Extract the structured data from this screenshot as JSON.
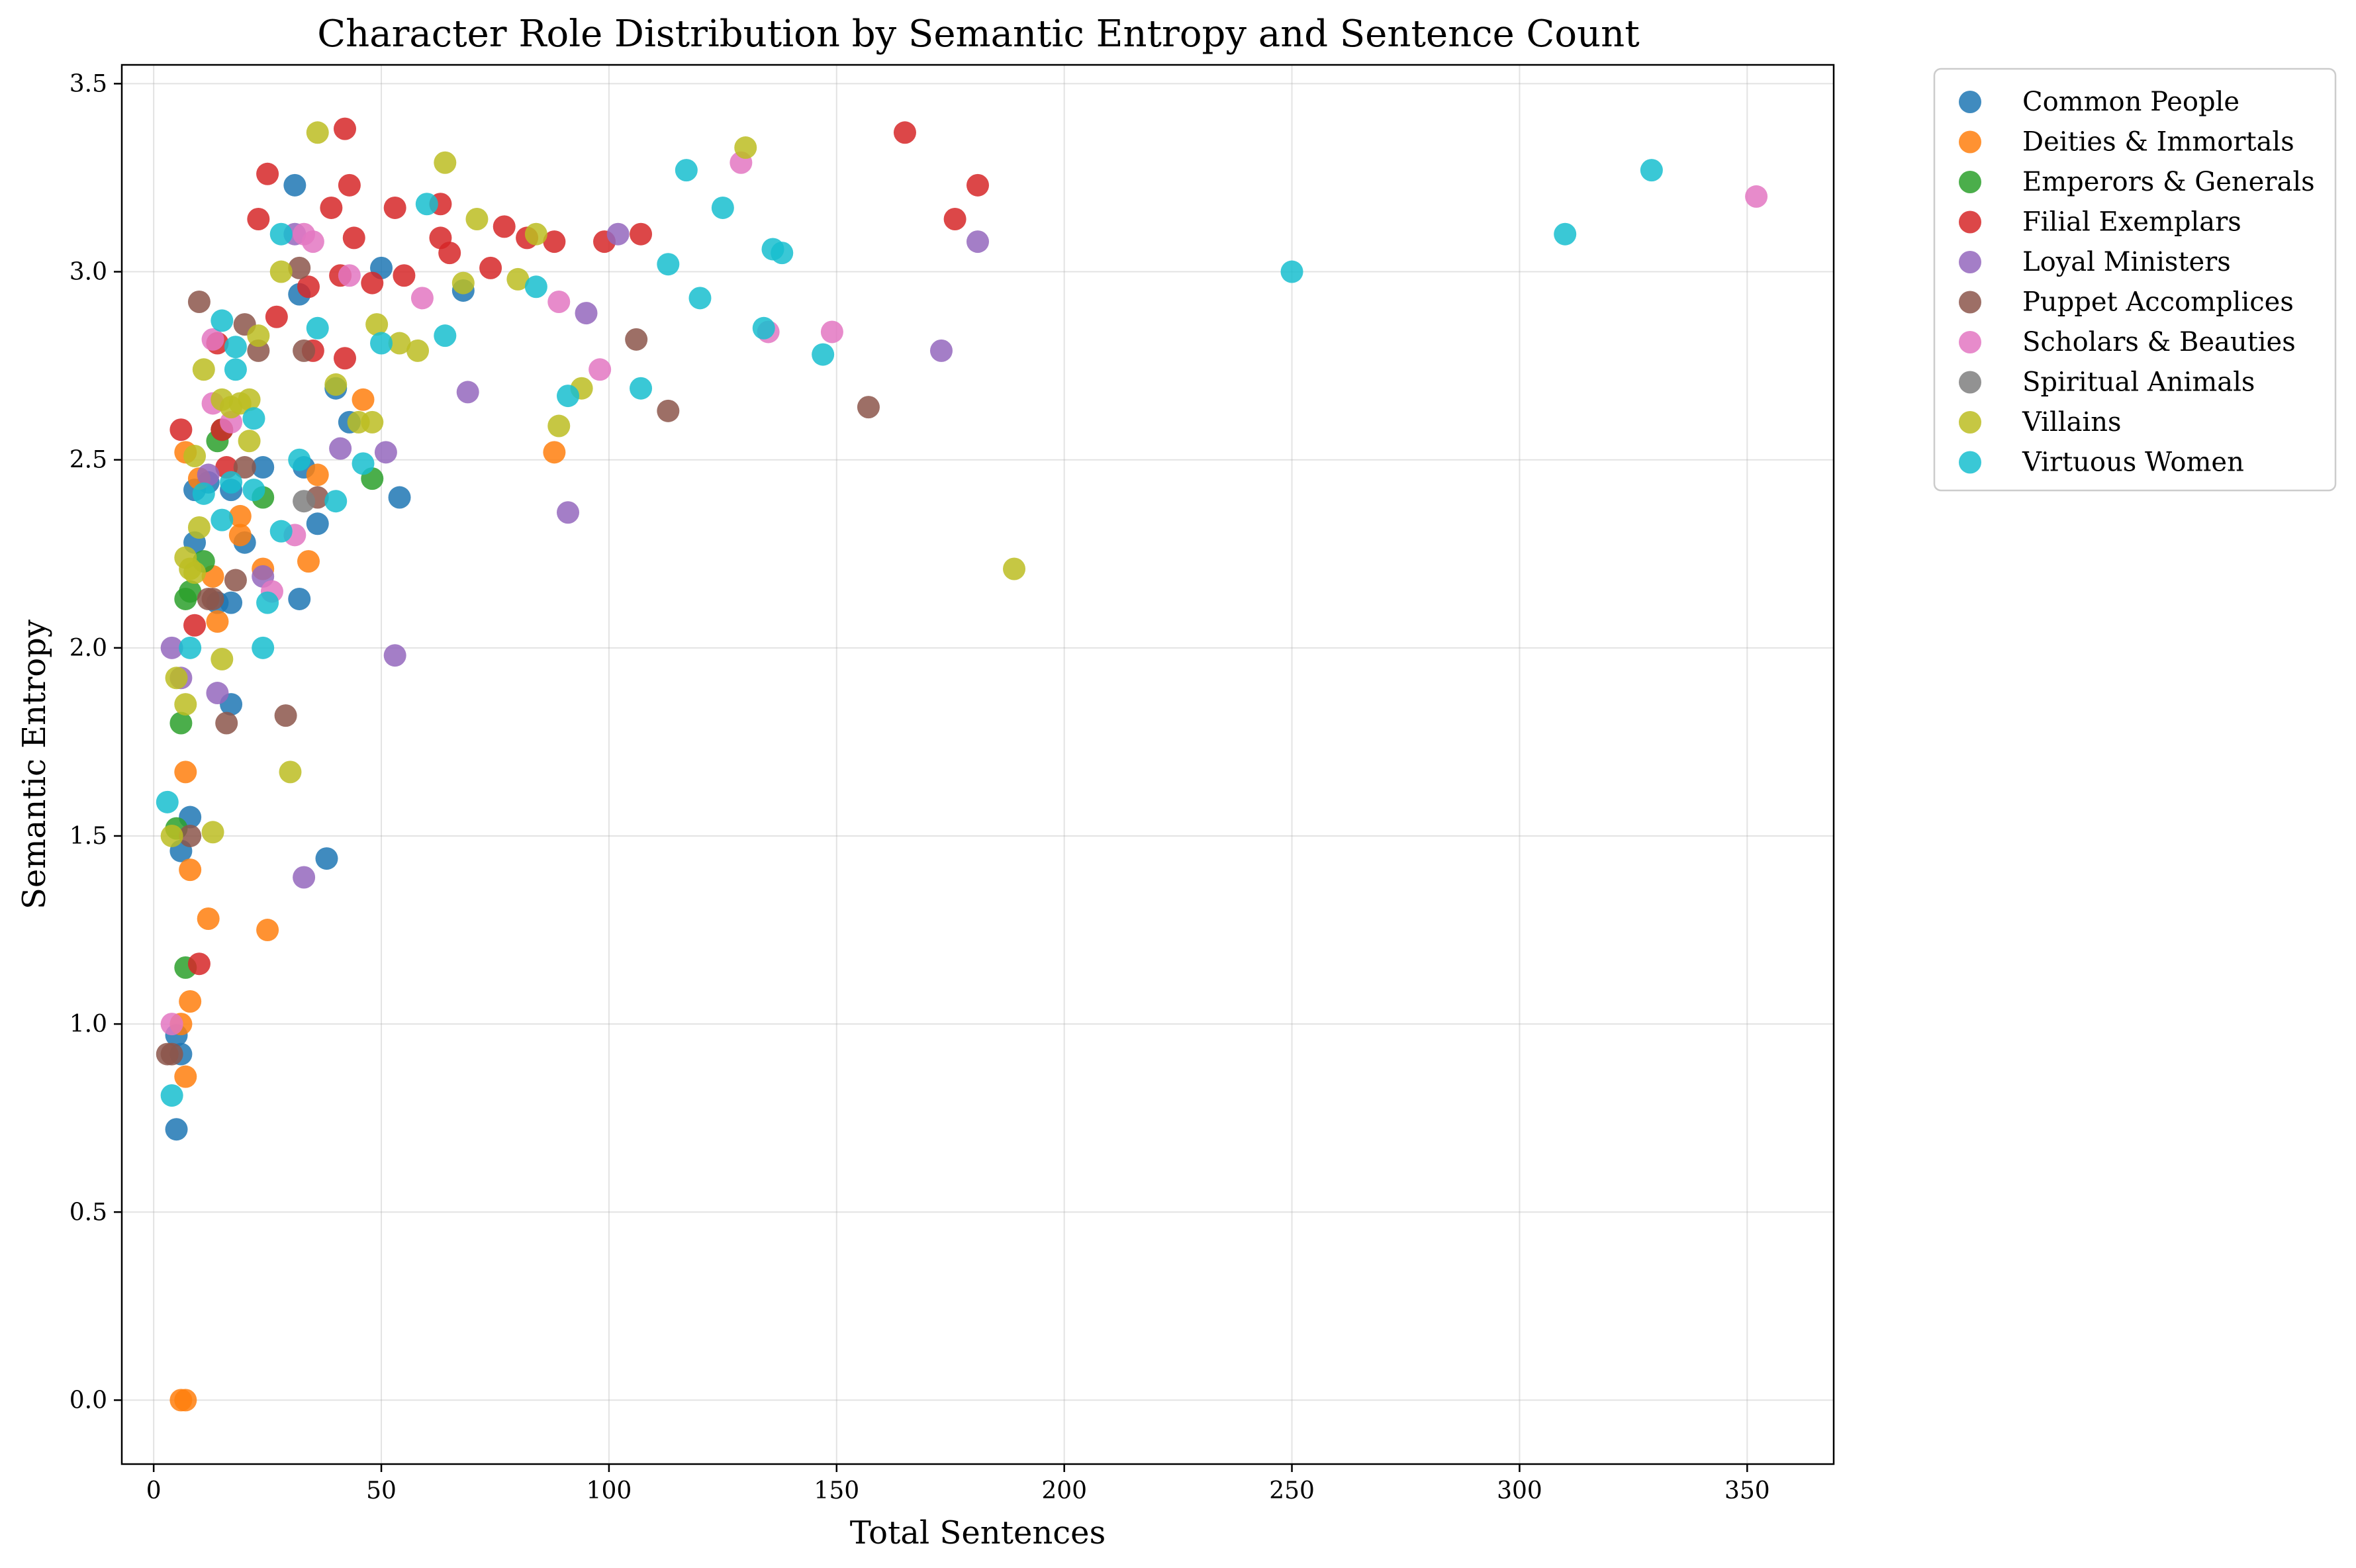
{
  "chart_data": {
    "type": "scatter",
    "title": "Character Role Distribution by Semantic Entropy and Sentence Count",
    "xlabel": "Total Sentences",
    "ylabel": "Semantic Entropy",
    "xlim": [
      -7,
      369
    ],
    "ylim": [
      -0.17,
      3.55
    ],
    "xticks": [
      0,
      50,
      100,
      150,
      200,
      250,
      300,
      350
    ],
    "yticks": [
      0.0,
      0.5,
      1.0,
      1.5,
      2.0,
      2.5,
      3.0,
      3.5
    ],
    "grid": true,
    "legend_position": "outside-top-right",
    "series": [
      {
        "name": "Common People",
        "color": "#1f77b4",
        "points": [
          [
            5,
            0.72
          ],
          [
            5,
            0.97
          ],
          [
            6,
            0.92
          ],
          [
            6,
            1.46
          ],
          [
            8,
            1.55
          ],
          [
            9,
            2.28
          ],
          [
            9,
            2.42
          ],
          [
            12,
            2.44
          ],
          [
            14,
            2.12
          ],
          [
            17,
            2.12
          ],
          [
            17,
            1.85
          ],
          [
            17,
            2.42
          ],
          [
            20,
            2.28
          ],
          [
            24,
            2.48
          ],
          [
            31,
            3.23
          ],
          [
            32,
            2.94
          ],
          [
            32,
            2.13
          ],
          [
            33,
            2.48
          ],
          [
            36,
            2.33
          ],
          [
            38,
            1.44
          ],
          [
            40,
            2.69
          ],
          [
            43,
            2.6
          ],
          [
            50,
            3.01
          ],
          [
            54,
            2.4
          ],
          [
            68,
            2.95
          ]
        ]
      },
      {
        "name": "Deities & Immortals",
        "color": "#ff7f0e",
        "points": [
          [
            6,
            0.0
          ],
          [
            7,
            0.0
          ],
          [
            6,
            1.0
          ],
          [
            7,
            0.86
          ],
          [
            7,
            1.67
          ],
          [
            7,
            2.52
          ],
          [
            8,
            1.06
          ],
          [
            8,
            1.41
          ],
          [
            10,
            2.45
          ],
          [
            12,
            1.28
          ],
          [
            13,
            2.19
          ],
          [
            14,
            2.07
          ],
          [
            19,
            2.3
          ],
          [
            19,
            2.35
          ],
          [
            24,
            2.21
          ],
          [
            25,
            1.25
          ],
          [
            34,
            2.23
          ],
          [
            36,
            2.46
          ],
          [
            46,
            2.66
          ],
          [
            88,
            2.52
          ]
        ]
      },
      {
        "name": "Emperors & Generals",
        "color": "#2ca02c",
        "points": [
          [
            5,
            1.52
          ],
          [
            6,
            1.8
          ],
          [
            7,
            1.15
          ],
          [
            7,
            2.13
          ],
          [
            8,
            2.15
          ],
          [
            11,
            2.23
          ],
          [
            14,
            2.55
          ],
          [
            15,
            2.58
          ],
          [
            24,
            2.4
          ],
          [
            48,
            2.45
          ]
        ]
      },
      {
        "name": "Filial Exemplars",
        "color": "#d62728",
        "points": [
          [
            6,
            2.58
          ],
          [
            9,
            2.06
          ],
          [
            10,
            1.16
          ],
          [
            14,
            2.81
          ],
          [
            15,
            2.58
          ],
          [
            16,
            2.48
          ],
          [
            23,
            3.14
          ],
          [
            25,
            3.26
          ],
          [
            27,
            2.88
          ],
          [
            34,
            2.96
          ],
          [
            35,
            2.79
          ],
          [
            39,
            3.17
          ],
          [
            41,
            2.99
          ],
          [
            42,
            2.77
          ],
          [
            42,
            3.38
          ],
          [
            43,
            3.23
          ],
          [
            44,
            3.09
          ],
          [
            48,
            2.97
          ],
          [
            53,
            3.17
          ],
          [
            55,
            2.99
          ],
          [
            63,
            3.18
          ],
          [
            63,
            3.09
          ],
          [
            65,
            3.05
          ],
          [
            74,
            3.01
          ],
          [
            77,
            3.12
          ],
          [
            82,
            3.09
          ],
          [
            88,
            3.08
          ],
          [
            99,
            3.08
          ],
          [
            107,
            3.1
          ],
          [
            165,
            3.37
          ],
          [
            176,
            3.14
          ],
          [
            181,
            3.23
          ]
        ]
      },
      {
        "name": "Loyal Ministers",
        "color": "#9467bd",
        "points": [
          [
            4,
            2.0
          ],
          [
            6,
            1.92
          ],
          [
            12,
            2.46
          ],
          [
            14,
            1.88
          ],
          [
            24,
            2.19
          ],
          [
            31,
            3.1
          ],
          [
            33,
            1.39
          ],
          [
            41,
            2.53
          ],
          [
            51,
            2.52
          ],
          [
            53,
            1.98
          ],
          [
            69,
            2.68
          ],
          [
            91,
            2.36
          ],
          [
            95,
            2.89
          ],
          [
            102,
            3.1
          ],
          [
            173,
            2.79
          ],
          [
            181,
            3.08
          ]
        ]
      },
      {
        "name": "Puppet Accomplices",
        "color": "#8c564b",
        "points": [
          [
            3,
            0.92
          ],
          [
            4,
            0.92
          ],
          [
            8,
            1.5
          ],
          [
            10,
            2.92
          ],
          [
            12,
            2.13
          ],
          [
            13,
            2.13
          ],
          [
            16,
            1.8
          ],
          [
            18,
            2.18
          ],
          [
            20,
            2.86
          ],
          [
            20,
            2.48
          ],
          [
            23,
            2.79
          ],
          [
            29,
            1.82
          ],
          [
            32,
            3.01
          ],
          [
            33,
            2.79
          ],
          [
            36,
            2.4
          ],
          [
            106,
            2.82
          ],
          [
            113,
            2.63
          ],
          [
            157,
            2.64
          ]
        ]
      },
      {
        "name": "Scholars & Beauties",
        "color": "#e377c2",
        "points": [
          [
            4,
            1.0
          ],
          [
            13,
            2.82
          ],
          [
            13,
            2.65
          ],
          [
            17,
            2.6
          ],
          [
            26,
            2.15
          ],
          [
            31,
            2.3
          ],
          [
            33,
            3.1
          ],
          [
            35,
            3.08
          ],
          [
            43,
            2.99
          ],
          [
            59,
            2.93
          ],
          [
            89,
            2.92
          ],
          [
            98,
            2.74
          ],
          [
            129,
            3.29
          ],
          [
            135,
            2.84
          ],
          [
            149,
            2.84
          ],
          [
            352,
            3.2
          ]
        ]
      },
      {
        "name": "Spiritual Animals",
        "color": "#7f7f7f",
        "points": [
          [
            33,
            2.39
          ]
        ]
      },
      {
        "name": "Villains",
        "color": "#bcbd22",
        "points": [
          [
            4,
            1.5
          ],
          [
            5,
            1.92
          ],
          [
            7,
            1.85
          ],
          [
            7,
            2.24
          ],
          [
            8,
            2.21
          ],
          [
            9,
            2.2
          ],
          [
            9,
            2.51
          ],
          [
            10,
            2.32
          ],
          [
            11,
            2.74
          ],
          [
            13,
            1.51
          ],
          [
            15,
            1.97
          ],
          [
            15,
            2.66
          ],
          [
            17,
            2.64
          ],
          [
            19,
            2.65
          ],
          [
            21,
            2.66
          ],
          [
            21,
            2.55
          ],
          [
            23,
            2.83
          ],
          [
            28,
            3.0
          ],
          [
            30,
            1.67
          ],
          [
            36,
            3.37
          ],
          [
            40,
            2.7
          ],
          [
            45,
            2.6
          ],
          [
            48,
            2.6
          ],
          [
            49,
            2.86
          ],
          [
            54,
            2.81
          ],
          [
            58,
            2.79
          ],
          [
            64,
            3.29
          ],
          [
            68,
            2.97
          ],
          [
            71,
            3.14
          ],
          [
            80,
            2.98
          ],
          [
            84,
            3.1
          ],
          [
            89,
            2.59
          ],
          [
            94,
            2.69
          ],
          [
            130,
            3.33
          ],
          [
            189,
            2.21
          ]
        ]
      },
      {
        "name": "Virtuous Women",
        "color": "#17becf",
        "points": [
          [
            3,
            1.59
          ],
          [
            4,
            0.81
          ],
          [
            8,
            2.0
          ],
          [
            11,
            2.41
          ],
          [
            15,
            2.87
          ],
          [
            15,
            2.34
          ],
          [
            17,
            2.44
          ],
          [
            18,
            2.8
          ],
          [
            18,
            2.74
          ],
          [
            22,
            2.61
          ],
          [
            22,
            2.42
          ],
          [
            24,
            2.0
          ],
          [
            25,
            2.12
          ],
          [
            28,
            3.1
          ],
          [
            28,
            2.31
          ],
          [
            32,
            2.5
          ],
          [
            36,
            2.85
          ],
          [
            40,
            2.39
          ],
          [
            46,
            2.49
          ],
          [
            50,
            2.81
          ],
          [
            60,
            3.18
          ],
          [
            64,
            2.83
          ],
          [
            84,
            2.96
          ],
          [
            91,
            2.67
          ],
          [
            107,
            2.69
          ],
          [
            113,
            3.02
          ],
          [
            117,
            3.27
          ],
          [
            120,
            2.93
          ],
          [
            125,
            3.17
          ],
          [
            134,
            2.85
          ],
          [
            136,
            3.06
          ],
          [
            138,
            3.05
          ],
          [
            147,
            2.78
          ],
          [
            250,
            3.0
          ],
          [
            310,
            3.1
          ],
          [
            329,
            3.27
          ]
        ]
      }
    ]
  }
}
